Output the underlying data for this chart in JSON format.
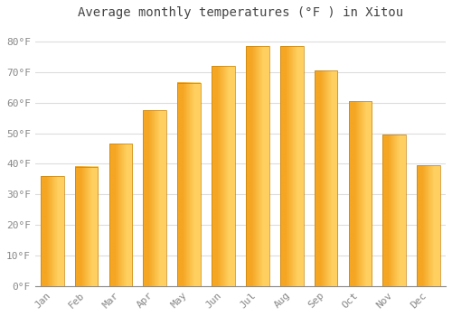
{
  "title": "Average monthly temperatures (°F ) in Xitou",
  "months": [
    "Jan",
    "Feb",
    "Mar",
    "Apr",
    "May",
    "Jun",
    "Jul",
    "Aug",
    "Sep",
    "Oct",
    "Nov",
    "Dec"
  ],
  "values": [
    36,
    39,
    46.5,
    57.5,
    66.5,
    72,
    78.5,
    78.5,
    70.5,
    60.5,
    49.5,
    39.5
  ],
  "bar_color": "#F5A623",
  "bar_highlight": "#FFD060",
  "bar_edge_color": "#C8820A",
  "yticks": [
    0,
    10,
    20,
    30,
    40,
    50,
    60,
    70,
    80
  ],
  "ytick_labels": [
    "0°F",
    "10°F",
    "20°F",
    "30°F",
    "40°F",
    "50°F",
    "60°F",
    "70°F",
    "80°F"
  ],
  "ylim": [
    0,
    85
  ],
  "background_color": "#ffffff",
  "plot_bg_color": "#ffffff",
  "grid_color": "#dddddd",
  "title_fontsize": 10,
  "tick_fontsize": 8,
  "title_color": "#444444",
  "tick_color": "#888888"
}
